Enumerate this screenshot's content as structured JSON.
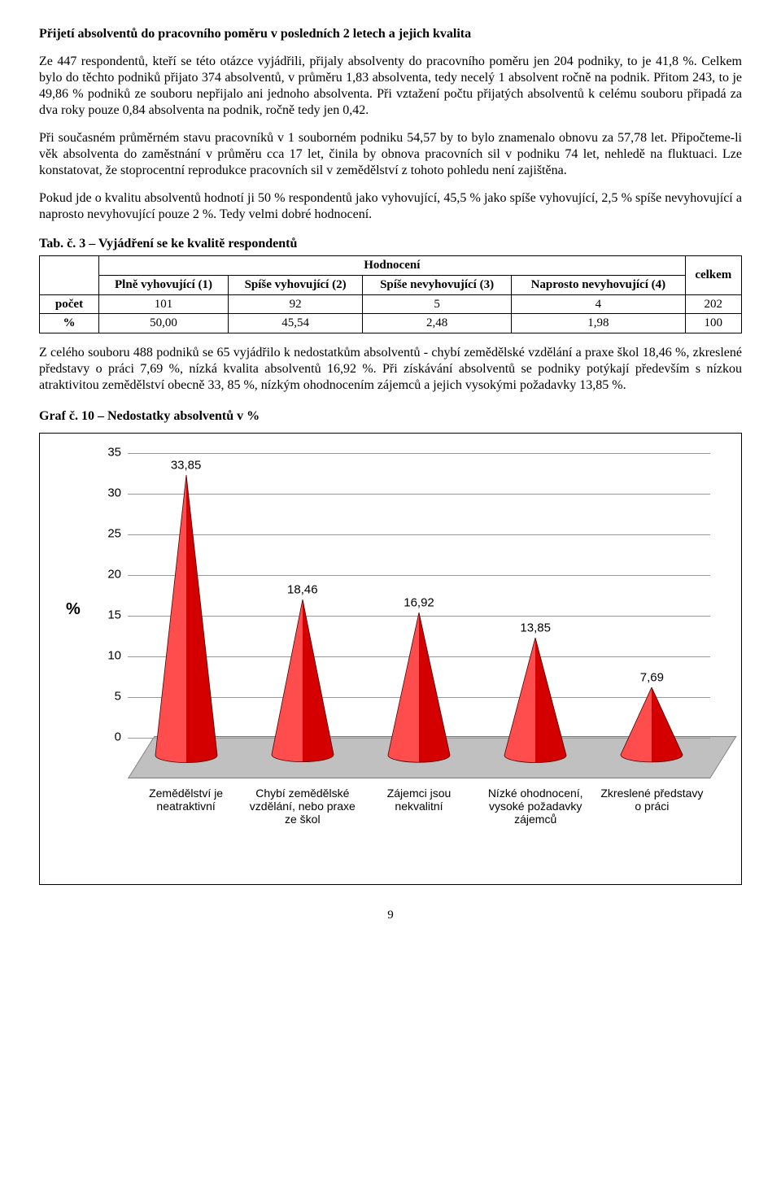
{
  "heading": "Přijetí absolventů do pracovního poměru v posledních 2 letech a jejich kvalita",
  "paragraphs": {
    "p1": "Ze 447 respondentů, kteří se této otázce vyjádřili, přijaly absolventy do pracovního poměru jen 204 podniky, to je 41,8 %. Celkem bylo do těchto podniků přijato 374 absolventů, v průměru 1,83 absolventa, tedy necelý 1 absolvent ročně na podnik. Přitom 243, to je 49,86 % podniků ze souboru nepřijalo ani jednoho absolventa. Při vztažení počtu přijatých absolventů k celému souboru připadá za dva roky pouze 0,84 absolventa na podnik, ročně tedy jen 0,42.",
    "p2": "Při současném průměrném stavu pracovníků v 1 souborném podniku 54,57 by to bylo znamenalo obnovu za 57,78 let. Připočteme-li věk absolventa do zaměstnání v průměru cca 17 let, činila by obnova pracovních sil v podniku 74 let, nehledě na fluktuaci. Lze konstatovat, že stoprocentní reprodukce pracovních sil v zemědělství z tohoto pohledu není zajištěna.",
    "p3": "Pokud jde o kvalitu absolventů hodnotí ji 50 % respondentů jako vyhovující, 45,5 % jako spíše vyhovující, 2,5 % spíše nevyhovující a naprosto nevyhovující pouze 2 %. Tedy velmi dobré hodnocení.",
    "p4": "Z celého souboru 488 podniků se 65 vyjádřilo k nedostatkům absolventů - chybí zemědělské vzdělání a praxe škol 18,46 %, zkreslené představy o práci 7,69 %, nízká kvalita absolventů 16,92 %. Při získávání absolventů se podniky potýkají především s nízkou atraktivitou zemědělství obecně 33, 85 %, nízkým ohodnocením zájemců a jejich vysokými požadavky 13,85 %."
  },
  "table_caption": "Tab. č. 3 – Vyjádření se ke kvalitě respondentů",
  "table": {
    "header_group": "Hodnocení",
    "cols": {
      "c1": "Plně vyhovující (1)",
      "c2": "Spíše vyhovující (2)",
      "c3": "Spíše nevyhovující (3)",
      "c4": "Naprosto nevyhovující (4)",
      "c5": "celkem"
    },
    "row_labels": {
      "r1": "počet",
      "r2": "%"
    },
    "rows": {
      "r1": {
        "c1": "101",
        "c2": "92",
        "c3": "5",
        "c4": "4",
        "c5": "202"
      },
      "r2": {
        "c1": "50,00",
        "c2": "45,54",
        "c3": "2,48",
        "c4": "1,98",
        "c5": "100"
      }
    }
  },
  "chart_caption": "Graf č. 10 – Nedostatky absolventů v %",
  "chart": {
    "type": "cone-bar-3d",
    "ylabel": "%",
    "ylim": [
      0,
      35
    ],
    "ytick_step": 5,
    "yticks": [
      "0",
      "5",
      "10",
      "15",
      "20",
      "25",
      "30",
      "35"
    ],
    "categories": [
      "Zemědělství je neatraktivní",
      "Chybí zemědělské vzdělání, nebo praxe ze škol",
      "Zájemci jsou nekvalitní",
      "Nízké ohodnocení, vysoké požadavky zájemců",
      "Zkreslené představy o práci"
    ],
    "values": [
      33.85,
      18.46,
      16.92,
      13.85,
      7.69
    ],
    "value_labels": [
      "33,85",
      "18,46",
      "16,92",
      "13,85",
      "7,69"
    ],
    "cone_fill": "#d40000",
    "cone_highlight": "#ff4d4d",
    "cone_shadow": "#7a0000",
    "floor_color": "#c0c0c0",
    "grid_color": "#9a9a9a",
    "background": "#ffffff",
    "label_font": "Arial",
    "label_fontsize": 14,
    "ytitle_fontsize": 20
  },
  "page_number": "9"
}
